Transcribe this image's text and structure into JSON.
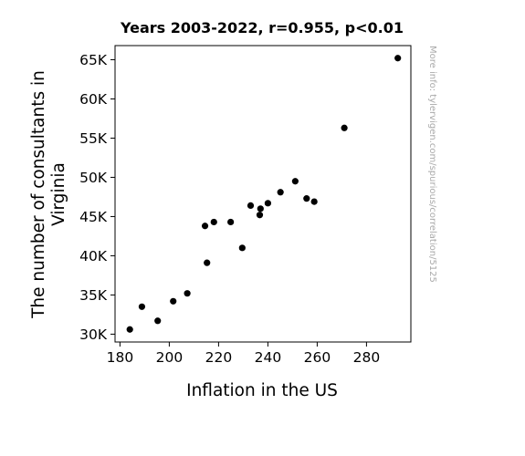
{
  "chart_data": {
    "type": "scatter",
    "title": "Years 2003-2022, r=0.955, p<0.01",
    "xlabel": "Inflation in the US",
    "ylabel_lines": [
      "The number of consultants in",
      "Virginia"
    ],
    "watermark": "More info: tylervigen.com/spurious/correlation/5125",
    "xlim": [
      178,
      298
    ],
    "ylim": [
      29000,
      66800
    ],
    "xticks": [
      180,
      200,
      220,
      240,
      260,
      280
    ],
    "yticks": [
      {
        "value": 30000,
        "label": "30K"
      },
      {
        "value": 35000,
        "label": "35K"
      },
      {
        "value": 40000,
        "label": "40K"
      },
      {
        "value": 45000,
        "label": "45K"
      },
      {
        "value": 50000,
        "label": "50K"
      },
      {
        "value": 55000,
        "label": "55K"
      },
      {
        "value": 60000,
        "label": "60K"
      },
      {
        "value": 65000,
        "label": "65K"
      }
    ],
    "marker_color": "#000000",
    "points": [
      {
        "x": 184.0,
        "y": 30600
      },
      {
        "x": 188.9,
        "y": 33500
      },
      {
        "x": 195.3,
        "y": 31700
      },
      {
        "x": 201.6,
        "y": 34200
      },
      {
        "x": 207.3,
        "y": 35200
      },
      {
        "x": 214.5,
        "y": 43800
      },
      {
        "x": 215.3,
        "y": 39100
      },
      {
        "x": 218.1,
        "y": 44300
      },
      {
        "x": 224.9,
        "y": 44300
      },
      {
        "x": 229.6,
        "y": 41000
      },
      {
        "x": 233.0,
        "y": 46400
      },
      {
        "x": 236.7,
        "y": 45200
      },
      {
        "x": 237.0,
        "y": 46000
      },
      {
        "x": 240.0,
        "y": 46700
      },
      {
        "x": 245.1,
        "y": 48100
      },
      {
        "x": 251.1,
        "y": 49500
      },
      {
        "x": 255.7,
        "y": 47300
      },
      {
        "x": 258.8,
        "y": 46900
      },
      {
        "x": 271.0,
        "y": 56300
      },
      {
        "x": 292.7,
        "y": 65200
      }
    ]
  }
}
